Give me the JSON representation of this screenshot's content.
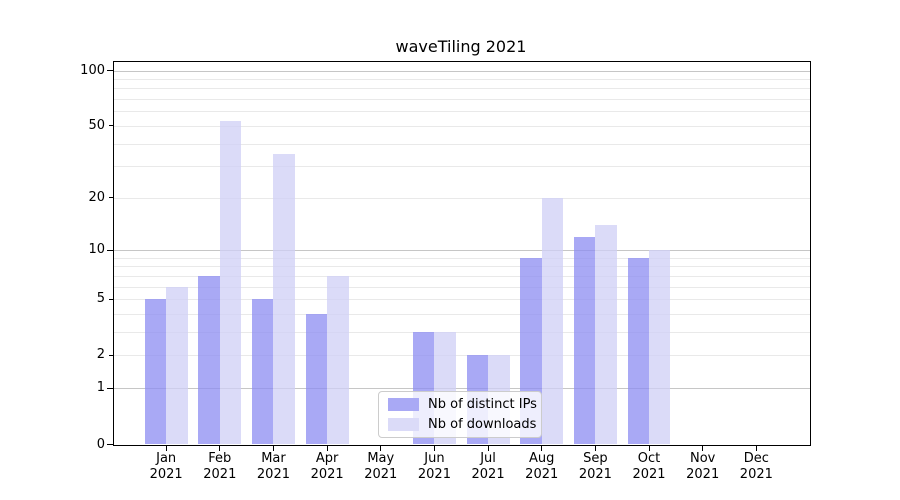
{
  "chart_data": {
    "type": "bar",
    "title": "waveTiling 2021",
    "categories": [
      "Jan 2021",
      "Feb 2021",
      "Mar 2021",
      "Apr 2021",
      "May 2021",
      "Jun 2021",
      "Jul 2021",
      "Aug 2021",
      "Sep 2021",
      "Oct 2021",
      "Nov 2021",
      "Dec 2021"
    ],
    "series": [
      {
        "name": "Nb of distinct IPs",
        "color": "#a9a9f5",
        "values": [
          5,
          7,
          5,
          4,
          0,
          3,
          2,
          9,
          12,
          9,
          0,
          0
        ]
      },
      {
        "name": "Nb of downloads",
        "color": "#dbdbf8",
        "values": [
          6,
          53,
          35,
          7,
          0,
          3,
          2,
          20,
          14,
          10,
          0,
          0
        ]
      }
    ],
    "xlabel": "",
    "ylabel": "",
    "y_scale": "log1p",
    "ylim": [
      0,
      113
    ],
    "y_tick_labels": [
      100,
      50,
      20,
      10,
      5,
      2,
      1,
      0
    ],
    "y_major_ticks": [
      0,
      1,
      10,
      100
    ],
    "y_minor_labeled_ticks": [
      2,
      5,
      20,
      50
    ],
    "y_major_gridlines": [
      1,
      10,
      100
    ],
    "y_minor_gridlines": [
      2,
      3,
      4,
      5,
      6,
      7,
      8,
      9,
      20,
      30,
      40,
      50,
      60,
      70,
      80,
      90
    ],
    "grid": true,
    "legend_position": "lower center",
    "colors": {
      "major_grid": "#c6c6c6",
      "minor_grid": "#e9e9e9",
      "spine": "#000000",
      "text": "#000000"
    }
  }
}
